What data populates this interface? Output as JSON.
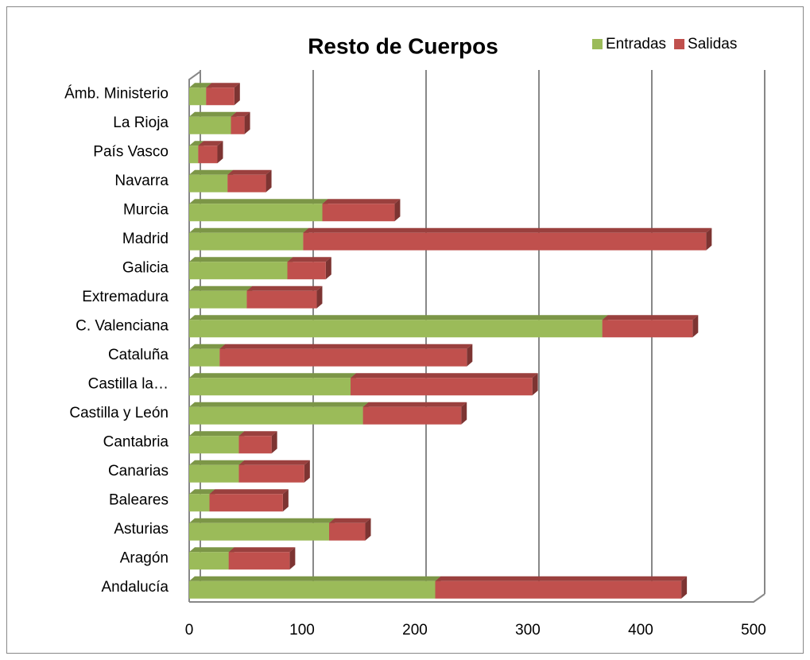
{
  "chart_data": {
    "type": "stacked-bar-3d",
    "orientation": "horizontal",
    "title": "Resto de Cuerpos",
    "categories": [
      "Andalucía",
      "Aragón",
      "Asturias",
      "Baleares",
      "Canarias",
      "Cantabria",
      "Castilla y León",
      "Castilla la…",
      "Cataluña",
      "C. Valenciana",
      "Extremadura",
      "Galicia",
      "Madrid",
      "Murcia",
      "Navarra",
      "País Vasco",
      "La Rioja",
      "Ámb. Ministerio"
    ],
    "series": [
      {
        "name": "Entradas",
        "color": "#9bbb59",
        "values": [
          218,
          35,
          124,
          18,
          44,
          44,
          154,
          143,
          27,
          366,
          51,
          87,
          101,
          118,
          34,
          8,
          37,
          15
        ]
      },
      {
        "name": "Salidas",
        "color": "#c0504d",
        "values": [
          218,
          54,
          32,
          65,
          58,
          29,
          87,
          161,
          219,
          80,
          62,
          34,
          357,
          64,
          34,
          17,
          12,
          25
        ]
      }
    ],
    "xlim": [
      0,
      500
    ],
    "xticks": [
      0,
      100,
      200,
      300,
      400,
      500
    ],
    "grid": true,
    "legend": "top-right"
  }
}
